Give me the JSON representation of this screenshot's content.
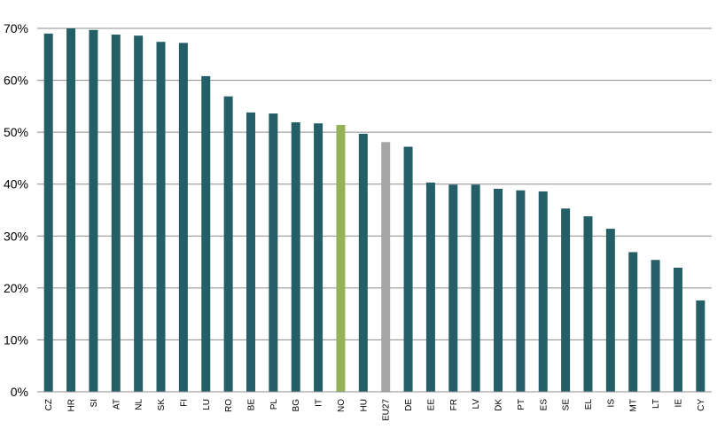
{
  "chart_data": {
    "type": "bar",
    "categories": [
      "CZ",
      "HR",
      "SI",
      "AT",
      "NL",
      "SK",
      "FI",
      "LU",
      "RO",
      "BE",
      "PL",
      "BG",
      "IT",
      "NO",
      "HU",
      "EU27",
      "DE",
      "EE",
      "FR",
      "LV",
      "DK",
      "PT",
      "ES",
      "SE",
      "EL",
      "IS",
      "MT",
      "LT",
      "IE",
      "CY"
    ],
    "values": [
      69.0,
      70.0,
      69.7,
      68.8,
      68.6,
      67.4,
      67.2,
      60.8,
      56.9,
      53.8,
      53.6,
      51.9,
      51.7,
      51.4,
      49.7,
      48.1,
      47.2,
      40.3,
      39.9,
      39.9,
      39.1,
      38.8,
      38.6,
      35.3,
      33.8,
      31.4,
      26.9,
      25.4,
      23.9,
      17.6
    ],
    "colors": {
      "default": "#245e66",
      "NO": "#93b356",
      "EU27": "#a6a6a6",
      "grid": "#8c8c8c",
      "axis": "#8c8c8c"
    },
    "y_ticks": [
      "0%",
      "10%",
      "20%",
      "30%",
      "40%",
      "50%",
      "60%",
      "70%"
    ],
    "ylim": [
      0,
      70
    ],
    "grid": true,
    "title": "",
    "xlabel": "",
    "ylabel": ""
  }
}
